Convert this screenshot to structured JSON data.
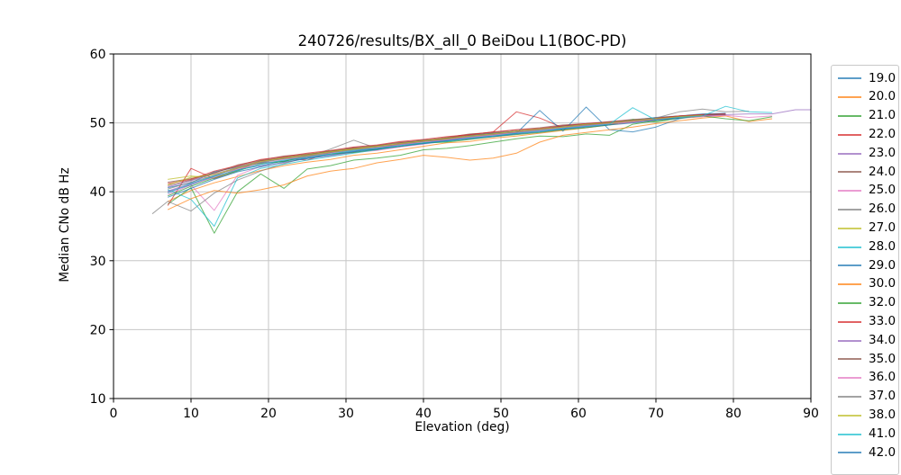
{
  "figure": {
    "title": "240726/results/BX_all_0 BeiDou L1(BOC-PD)",
    "xlabel": "Elevation (deg)",
    "ylabel": "Median CNo dB Hz"
  },
  "chart_data": {
    "type": "line",
    "title": "240726/results/BX_all_0 BeiDou L1(BOC-PD)",
    "xlabel": "Elevation (deg)",
    "ylabel": "Median CNo dB Hz",
    "xlim": [
      0,
      90
    ],
    "ylim": [
      10,
      60
    ],
    "x_ticks": [
      0,
      10,
      20,
      30,
      40,
      50,
      60,
      70,
      80,
      90
    ],
    "y_ticks": [
      10,
      20,
      30,
      40,
      50,
      60
    ],
    "grid": true,
    "grid_color": "#c6c6c6",
    "spine_color": "#000000",
    "line_opacity": 0.72,
    "legend_position": "outside-right",
    "x_default": [
      7,
      10,
      13,
      16,
      19,
      22,
      25,
      28,
      31,
      34,
      37,
      40,
      43,
      46,
      49,
      52,
      55,
      58,
      61,
      64,
      67,
      70,
      73,
      76,
      79
    ],
    "series": [
      {
        "name": "19.0",
        "color": "#1f77b4",
        "y": [
          40.6,
          41.3,
          42.9,
          43.6,
          44.2,
          44.4,
          45.3,
          45.9,
          46.2,
          46.1,
          47.0,
          47.5,
          47.3,
          48.2,
          48.5,
          48.8,
          49.0,
          49.6,
          49.8,
          50.1,
          50.4,
          50.8,
          51.0,
          51.3,
          51.4
        ]
      },
      {
        "name": "20.0",
        "color": "#ff7f0e",
        "x": [
          7,
          10,
          13,
          16,
          19,
          22,
          25,
          28,
          31,
          34,
          37,
          40,
          43,
          46,
          49,
          52,
          55,
          58,
          61,
          64,
          67,
          70,
          73,
          76
        ],
        "y": [
          38.6,
          40.2,
          41.3,
          42.2,
          43.1,
          43.8,
          44.3,
          44.7,
          45.3,
          45.6,
          46.1,
          46.6,
          47.1,
          47.3,
          47.8,
          48.1,
          48.5,
          48.9,
          49.3,
          49.7,
          50.1,
          50.4,
          50.7,
          50.9
        ]
      },
      {
        "name": "21.0",
        "color": "#2ca02c",
        "y": [
          38.2,
          40.6,
          34.0,
          40.0,
          42.6,
          40.5,
          43.3,
          43.8,
          44.6,
          44.9,
          45.3,
          46.1,
          46.3,
          46.7,
          47.2,
          47.7,
          48.1,
          48.0,
          48.4,
          48.2,
          49.8,
          50.3,
          50.7,
          51.0,
          51.2
        ]
      },
      {
        "name": "22.0",
        "color": "#d62728",
        "y": [
          38.0,
          43.4,
          41.9,
          43.1,
          44.5,
          44.9,
          44.6,
          45.7,
          46.4,
          46.1,
          47.1,
          47.0,
          47.8,
          48.3,
          48.7,
          51.6,
          50.7,
          49.3,
          49.6,
          50.0,
          50.2,
          50.6,
          50.9,
          51.1,
          51.3
        ]
      },
      {
        "name": "23.0",
        "color": "#9467bd",
        "y": [
          40.1,
          41.2,
          42.3,
          43.6,
          44.4,
          44.8,
          45.0,
          45.4,
          45.8,
          46.6,
          46.9,
          47.0,
          47.7,
          48.0,
          48.4,
          48.5,
          49.1,
          49.4,
          49.7,
          50.0,
          50.3,
          50.5,
          50.9,
          51.2,
          51.3
        ]
      },
      {
        "name": "24.0",
        "color": "#8c564b",
        "y": [
          41.4,
          41.9,
          42.7,
          43.9,
          44.6,
          45.2,
          45.5,
          45.8,
          46.3,
          46.7,
          47.2,
          47.4,
          47.9,
          48.4,
          48.6,
          49.0,
          49.3,
          49.7,
          49.9,
          50.2,
          50.5,
          50.7,
          51.0,
          51.2,
          51.3
        ]
      },
      {
        "name": "25.0",
        "color": "#e377c2",
        "y": [
          39.6,
          41.0,
          37.3,
          42.4,
          43.7,
          44.2,
          44.9,
          45.2,
          45.7,
          46.0,
          46.5,
          46.9,
          47.4,
          47.7,
          48.1,
          48.4,
          48.8,
          49.1,
          49.5,
          49.8,
          50.1,
          50.4,
          50.7,
          50.9,
          51.1
        ]
      },
      {
        "name": "26.0",
        "color": "#7f7f7f",
        "x": [
          5,
          7,
          10,
          13,
          16,
          19,
          22,
          25,
          28,
          31,
          34,
          37,
          40,
          43,
          46,
          49,
          52,
          55,
          58,
          61,
          64,
          67,
          70,
          73,
          76,
          79
        ],
        "y": [
          36.8,
          38.6,
          37.2,
          39.8,
          41.7,
          43.0,
          44.1,
          45.0,
          46.2,
          47.5,
          46.3,
          46.9,
          47.3,
          47.6,
          48.1,
          48.3,
          48.7,
          49.0,
          49.2,
          49.6,
          50.0,
          50.3,
          50.6,
          50.8,
          51.0,
          51.2
        ]
      },
      {
        "name": "27.0",
        "color": "#bcbd22",
        "x": [
          7,
          10,
          13,
          16,
          19,
          22,
          25,
          28,
          31,
          34,
          37,
          40,
          43,
          46,
          49,
          52,
          55,
          58,
          61,
          64,
          67,
          70,
          73,
          76
        ],
        "y": [
          41.8,
          42.3,
          42.0,
          43.4,
          44.3,
          45.0,
          45.4,
          45.9,
          46.2,
          46.6,
          46.9,
          47.3,
          47.8,
          48.0,
          48.3,
          48.6,
          49.0,
          49.4,
          49.6,
          49.9,
          50.2,
          50.5,
          50.8,
          51.0
        ]
      },
      {
        "name": "28.0",
        "color": "#17becf",
        "y": [
          40.3,
          38.9,
          35.0,
          42.0,
          43.4,
          44.0,
          44.6,
          45.1,
          45.6,
          46.1,
          46.6,
          47.0,
          47.3,
          47.8,
          48.2,
          48.5,
          48.9,
          49.2,
          49.5,
          49.9,
          50.2,
          50.5,
          50.8,
          51.0,
          51.2
        ]
      },
      {
        "name": "29.0",
        "color": "#1f77b4",
        "y": [
          40.0,
          41.0,
          42.2,
          43.2,
          43.8,
          44.5,
          44.9,
          45.5,
          45.9,
          46.3,
          46.8,
          47.1,
          47.5,
          47.9,
          48.1,
          48.5,
          51.8,
          48.8,
          52.3,
          49.0,
          48.7,
          49.4,
          50.6,
          51.1,
          51.3
        ]
      },
      {
        "name": "30.0",
        "color": "#ff7f0e",
        "x": [
          7,
          10,
          13,
          16,
          19,
          22,
          25,
          28,
          31,
          34,
          37,
          40,
          43,
          46,
          49,
          52,
          55,
          58,
          61,
          64,
          67,
          70,
          73,
          76,
          79,
          82,
          85
        ],
        "y": [
          37.4,
          39.0,
          40.2,
          39.8,
          40.3,
          41.0,
          42.3,
          43.0,
          43.4,
          44.2,
          44.7,
          45.3,
          45.0,
          44.6,
          44.9,
          45.6,
          47.2,
          48.2,
          48.6,
          49.0,
          49.4,
          49.9,
          50.3,
          50.7,
          51.0,
          50.2,
          50.6
        ]
      },
      {
        "name": "32.0",
        "color": "#2ca02c",
        "x": [
          7,
          10,
          13,
          16,
          19,
          22,
          25,
          28,
          31,
          34,
          37,
          40,
          43,
          46,
          49,
          52,
          55,
          58,
          61,
          64,
          67,
          70,
          73,
          76,
          79,
          82,
          85
        ],
        "y": [
          39.4,
          40.8,
          42.0,
          43.0,
          44.1,
          44.4,
          45.2,
          45.5,
          45.7,
          46.2,
          46.6,
          47.1,
          47.2,
          47.6,
          48.0,
          48.3,
          48.6,
          49.0,
          49.3,
          49.7,
          50.5,
          50.1,
          50.7,
          51.0,
          50.6,
          50.3,
          50.9
        ]
      },
      {
        "name": "33.0",
        "color": "#d62728",
        "y": [
          41.2,
          41.8,
          43.0,
          43.8,
          44.7,
          45.1,
          45.6,
          46.0,
          46.5,
          46.8,
          47.3,
          47.6,
          48.0,
          48.3,
          48.7,
          49.0,
          49.2,
          49.6,
          49.9,
          50.1,
          50.4,
          50.7,
          51.0,
          51.2,
          51.3
        ]
      },
      {
        "name": "34.0",
        "color": "#9467bd",
        "x": [
          7,
          10,
          13,
          16,
          19,
          22,
          25,
          28,
          31,
          34,
          37,
          40,
          43,
          46,
          49,
          52,
          55,
          58,
          61,
          64,
          67,
          70,
          73,
          76,
          79,
          82,
          85,
          88,
          90
        ],
        "y": [
          40.7,
          41.6,
          42.6,
          43.5,
          44.3,
          44.9,
          45.3,
          45.7,
          46.1,
          46.5,
          46.9,
          47.3,
          47.6,
          48.0,
          48.3,
          48.7,
          49.0,
          49.3,
          49.6,
          49.9,
          50.2,
          50.5,
          50.8,
          51.0,
          51.2,
          51.3,
          51.3,
          51.9,
          51.9
        ]
      },
      {
        "name": "35.0",
        "color": "#8c564b",
        "y": [
          40.9,
          41.7,
          42.8,
          43.7,
          44.5,
          45.0,
          45.4,
          45.9,
          46.4,
          46.7,
          47.1,
          47.5,
          47.8,
          48.2,
          48.5,
          48.8,
          49.1,
          49.5,
          49.8,
          50.0,
          50.3,
          50.6,
          50.9,
          51.1,
          51.2
        ]
      },
      {
        "name": "36.0",
        "color": "#e377c2",
        "x": [
          7,
          10,
          13,
          16,
          19,
          22,
          25,
          28,
          31,
          34,
          37,
          40,
          43,
          46,
          49,
          52,
          55,
          58,
          61,
          64,
          67,
          70,
          73,
          76,
          79,
          82,
          85
        ],
        "y": [
          39.9,
          41.1,
          42.1,
          43.3,
          44.0,
          44.7,
          45.1,
          45.6,
          46.0,
          46.4,
          46.8,
          47.2,
          47.5,
          47.9,
          48.2,
          48.6,
          48.9,
          49.3,
          49.6,
          49.9,
          50.2,
          50.5,
          50.8,
          51.0,
          51.1,
          50.8,
          51.0
        ]
      },
      {
        "name": "37.0",
        "color": "#7f7f7f",
        "x": [
          7,
          10,
          13,
          16,
          19,
          22,
          25,
          28,
          31,
          34,
          37,
          40,
          43,
          46,
          49,
          52,
          55,
          58,
          61,
          64,
          67,
          70,
          73,
          76,
          79,
          82
        ],
        "y": [
          40.4,
          41.4,
          42.4,
          43.4,
          44.2,
          44.8,
          45.2,
          45.7,
          46.1,
          46.5,
          47.0,
          47.3,
          47.7,
          48.1,
          48.4,
          48.7,
          49.1,
          49.4,
          49.7,
          50.0,
          50.4,
          50.7,
          51.6,
          52.0,
          51.6,
          51.7
        ]
      },
      {
        "name": "38.0",
        "color": "#bcbd22",
        "x": [
          7,
          10,
          13,
          16,
          19,
          22,
          25,
          28,
          31,
          34,
          37,
          40,
          43,
          46,
          49,
          52,
          55,
          58,
          61,
          64,
          67,
          70,
          73,
          76
        ],
        "y": [
          41.0,
          42.1,
          42.5,
          43.5,
          44.4,
          44.9,
          45.3,
          45.8,
          46.2,
          46.6,
          47.0,
          47.4,
          47.7,
          48.1,
          48.4,
          48.8,
          49.1,
          49.4,
          49.8,
          50.0,
          50.3,
          50.6,
          50.9,
          51.1
        ]
      },
      {
        "name": "41.0",
        "color": "#17becf",
        "x": [
          7,
          10,
          13,
          16,
          19,
          22,
          25,
          28,
          31,
          34,
          37,
          40,
          43,
          46,
          49,
          52,
          55,
          58,
          61,
          64,
          67,
          70,
          73,
          76,
          79,
          82,
          85
        ],
        "y": [
          39.8,
          41.2,
          42.3,
          43.1,
          44.0,
          44.6,
          45.0,
          45.5,
          46.0,
          46.3,
          46.7,
          47.1,
          47.4,
          47.8,
          48.1,
          48.5,
          48.8,
          49.2,
          49.5,
          49.8,
          52.2,
          50.4,
          50.8,
          51.0,
          52.4,
          51.6,
          51.5
        ]
      },
      {
        "name": "42.0",
        "color": "#1f77b4",
        "x": [
          7,
          10,
          13,
          16,
          19,
          22,
          25,
          28,
          31,
          34,
          37,
          40,
          43,
          46,
          49,
          52,
          55,
          58,
          61,
          64,
          67,
          70,
          73
        ],
        "y": [
          39.2,
          40.5,
          41.8,
          42.9,
          43.6,
          44.3,
          44.8,
          45.3,
          45.8,
          46.2,
          46.6,
          47.0,
          47.4,
          47.7,
          48.0,
          48.4,
          48.7,
          49.1,
          49.4,
          49.7,
          50.0,
          50.4,
          50.7
        ]
      }
    ]
  }
}
